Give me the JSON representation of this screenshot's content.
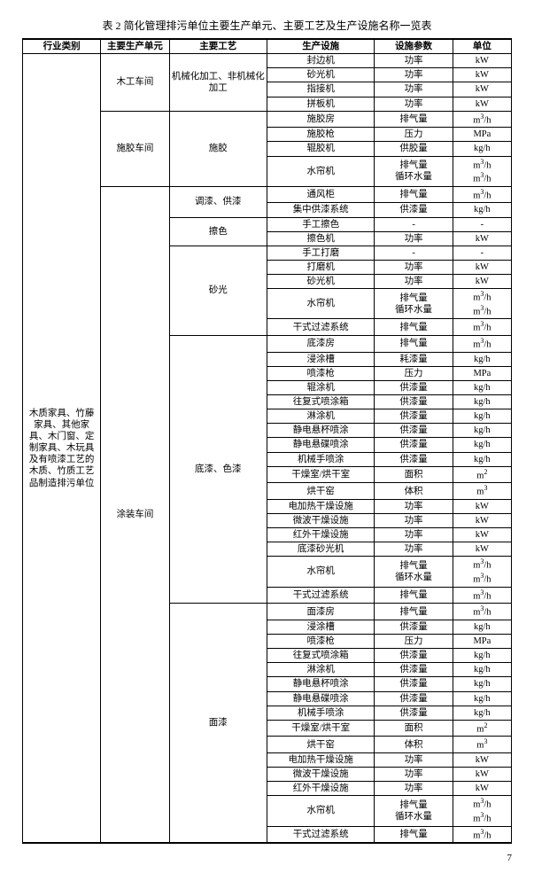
{
  "title": "表 2   简化管理排污单位主要生产单元、主要工艺及生产设施名称一览表",
  "pageNumber": "7",
  "headers": [
    "行业类别",
    "主要生产单元",
    "主要工艺",
    "生产设施",
    "设施参数",
    "单位"
  ],
  "industryLabel": "木质家具、竹藤家具、其他家具、木门窗、定制家具、木玩具及有喷漆工艺的木质、竹质工艺品制造排污单位",
  "groups": [
    {
      "unit": "木工车间",
      "process": "机械化加工、非机械化加工",
      "rows": [
        {
          "f": "封边机",
          "p": "功率",
          "u": "kW"
        },
        {
          "f": "砂光机",
          "p": "功率",
          "u": "kW"
        },
        {
          "f": "指接机",
          "p": "功率",
          "u": "kW"
        },
        {
          "f": "拼板机",
          "p": "功率",
          "u": "kW"
        }
      ]
    },
    {
      "unit": "施胶车间",
      "process": "施胶",
      "rows": [
        {
          "f": "施胶房",
          "p": "排气量",
          "u": "m³/h"
        },
        {
          "f": "施胶枪",
          "p": "压力",
          "u": "MPa"
        },
        {
          "f": "辊胶机",
          "p": "供胶量",
          "u": "kg/h"
        },
        {
          "f": "水帘机",
          "p": "排气量\n循环水量",
          "u": "m³/h\nm³/h",
          "multiline": true
        }
      ]
    },
    {
      "unit": "涂装车间",
      "process": "调漆、供漆",
      "rows": [
        {
          "f": "通风柜",
          "p": "排气量",
          "u": "m³/h"
        },
        {
          "f": "集中供漆系统",
          "p": "供漆量",
          "u": "kg/h"
        }
      ]
    },
    {
      "unit": "",
      "process": "擦色",
      "rows": [
        {
          "f": "手工擦色",
          "p": "-",
          "u": "-"
        },
        {
          "f": "擦色机",
          "p": "功率",
          "u": "kW"
        }
      ]
    },
    {
      "unit": "",
      "process": "砂光",
      "rows": [
        {
          "f": "手工打磨",
          "p": "-",
          "u": "-"
        },
        {
          "f": "打磨机",
          "p": "功率",
          "u": "kW"
        },
        {
          "f": "砂光机",
          "p": "功率",
          "u": "kW"
        },
        {
          "f": "水帘机",
          "p": "排气量\n循环水量",
          "u": "m³/h\nm³/h",
          "multiline": true
        },
        {
          "f": "干式过滤系统",
          "p": "排气量",
          "u": "m³/h"
        }
      ]
    },
    {
      "unit": "",
      "process": "底漆、色漆",
      "rows": [
        {
          "f": "底漆房",
          "p": "排气量",
          "u": "m³/h"
        },
        {
          "f": "浸涂槽",
          "p": "耗漆量",
          "u": "kg/h"
        },
        {
          "f": "喷漆枪",
          "p": "压力",
          "u": "MPa"
        },
        {
          "f": "辊涂机",
          "p": "供漆量",
          "u": "kg/h"
        },
        {
          "f": "往复式喷涂箱",
          "p": "供漆量",
          "u": "kg/h"
        },
        {
          "f": "淋涂机",
          "p": "供漆量",
          "u": "kg/h"
        },
        {
          "f": "静电悬杯喷涂",
          "p": "供漆量",
          "u": "kg/h"
        },
        {
          "f": "静电悬碟喷涂",
          "p": "供漆量",
          "u": "kg/h"
        },
        {
          "f": "机械手喷涂",
          "p": "供漆量",
          "u": "kg/h"
        },
        {
          "f": "干燥室/烘干室",
          "p": "面积",
          "u": "m²"
        },
        {
          "f": "烘干窑",
          "p": "体积",
          "u": "m³"
        },
        {
          "f": "电加热干燥设施",
          "p": "功率",
          "u": "kW"
        },
        {
          "f": "微波干燥设施",
          "p": "功率",
          "u": "kW"
        },
        {
          "f": "红外干燥设施",
          "p": "功率",
          "u": "kW"
        },
        {
          "f": "底漆砂光机",
          "p": "功率",
          "u": "kW"
        },
        {
          "f": "水帘机",
          "p": "排气量\n循环水量",
          "u": "m³/h\nm³/h",
          "multiline": true
        },
        {
          "f": "干式过滤系统",
          "p": "排气量",
          "u": "m³/h"
        }
      ]
    },
    {
      "unit": "",
      "process": "面漆",
      "rows": [
        {
          "f": "面漆房",
          "p": "排气量",
          "u": "m³/h"
        },
        {
          "f": "浸涂槽",
          "p": "供漆量",
          "u": "kg/h"
        },
        {
          "f": "喷漆枪",
          "p": "压力",
          "u": "MPa"
        },
        {
          "f": "往复式喷涂箱",
          "p": "供漆量",
          "u": "kg/h"
        },
        {
          "f": "淋涂机",
          "p": "供漆量",
          "u": "kg/h"
        },
        {
          "f": "静电悬杯喷涂",
          "p": "供漆量",
          "u": "kg/h"
        },
        {
          "f": "静电悬碟喷涂",
          "p": "供漆量",
          "u": "kg/h"
        },
        {
          "f": "机械手喷涂",
          "p": "供漆量",
          "u": "kg/h"
        },
        {
          "f": "干燥室/烘干室",
          "p": "面积",
          "u": "m²"
        },
        {
          "f": "烘干窑",
          "p": "体积",
          "u": "m³"
        },
        {
          "f": "电加热干燥设施",
          "p": "功率",
          "u": "kW"
        },
        {
          "f": "微波干燥设施",
          "p": "功率",
          "u": "kW"
        },
        {
          "f": "红外干燥设施",
          "p": "功率",
          "u": "kW"
        },
        {
          "f": "水帘机",
          "p": "排气量\n循环水量",
          "u": "m³/h\nm³/h",
          "multiline": true
        },
        {
          "f": "干式过滤系统",
          "p": "排气量",
          "u": "m³/h"
        }
      ]
    }
  ],
  "tuzhuangRowspan": 43
}
